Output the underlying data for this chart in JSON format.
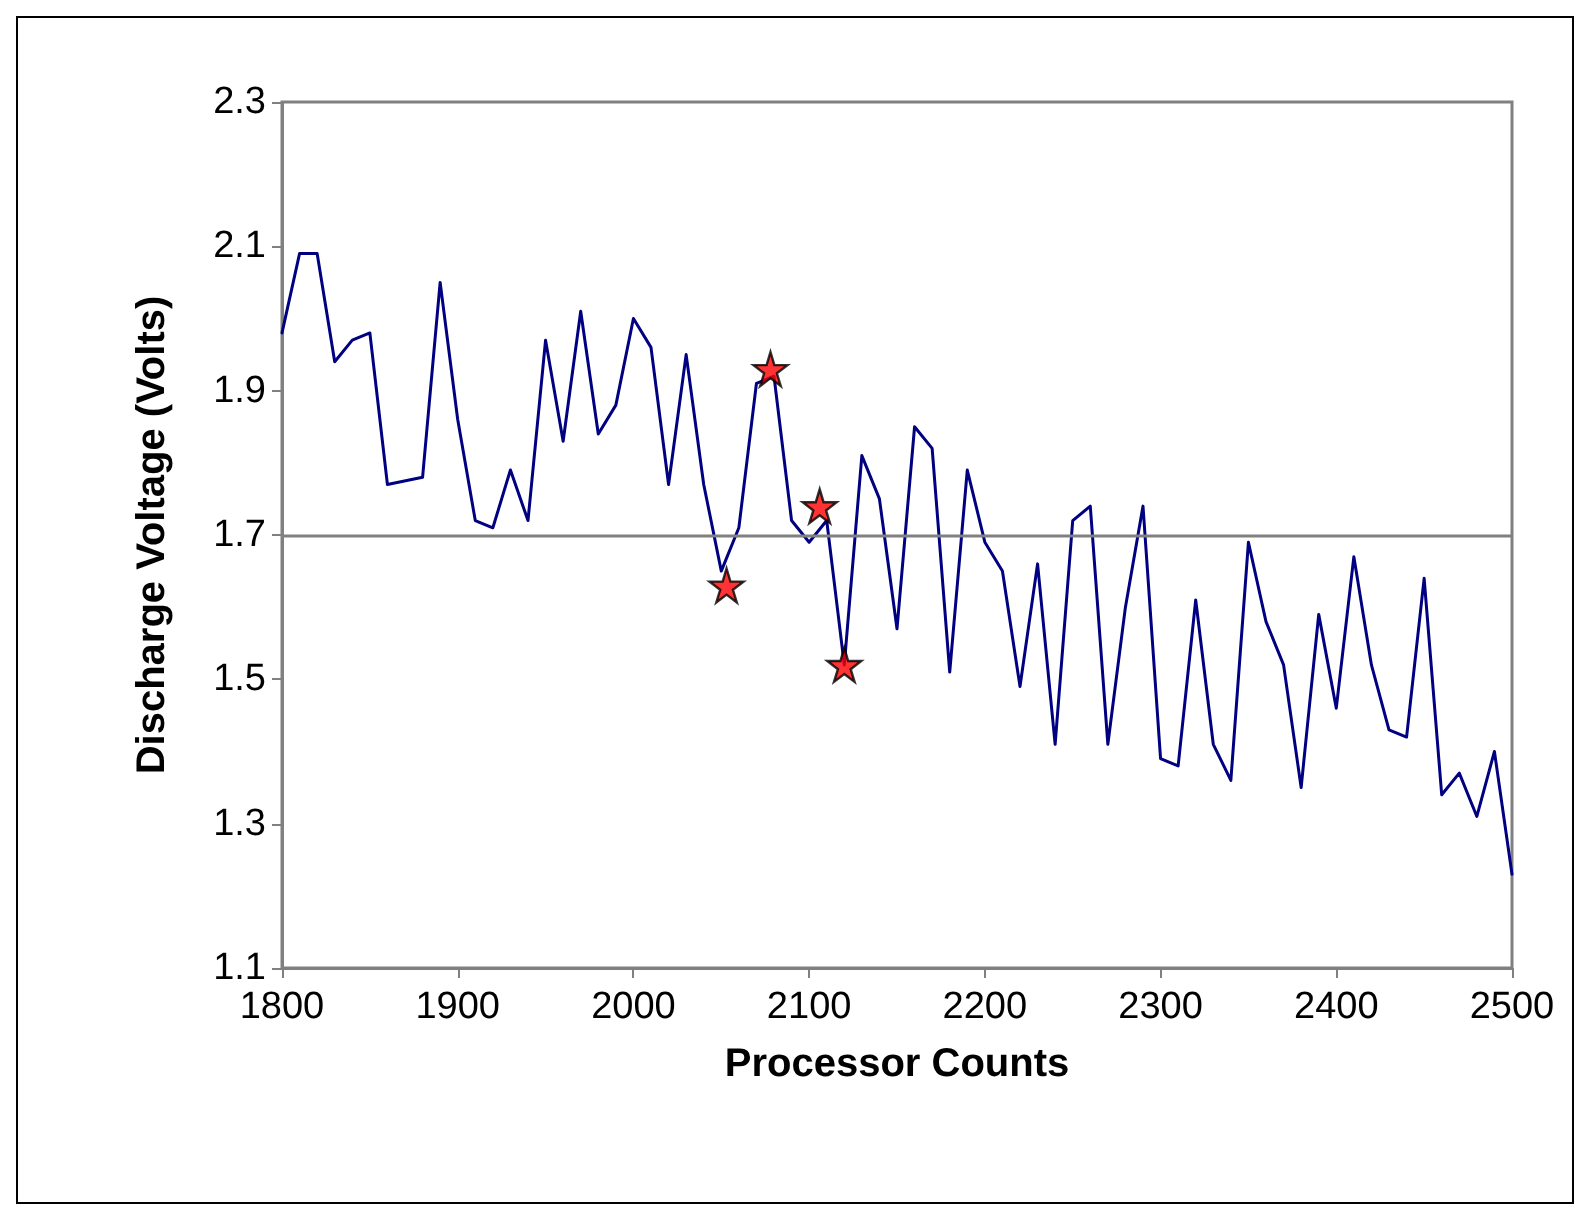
{
  "chart_data": {
    "type": "line",
    "xlabel": "Processor Counts",
    "ylabel": "Discharge Voltage (Volts)",
    "xlim": [
      1800,
      2500
    ],
    "xticks": [
      1800,
      1900,
      2000,
      2100,
      2200,
      2300,
      2400,
      2500
    ],
    "ylim": [
      1.1,
      2.3
    ],
    "yticks": [
      1.1,
      1.3,
      1.5,
      1.7,
      1.9,
      2.1,
      2.3
    ],
    "grid": false,
    "marker": "none",
    "line_style": "solid",
    "ref_lines": [
      {
        "axis": "y",
        "value": 1.7,
        "color": "#808080"
      }
    ],
    "series": [
      {
        "color": "#000080",
        "x": [
          1800,
          1810,
          1820,
          1830,
          1840,
          1850,
          1860,
          1880,
          1890,
          1900,
          1910,
          1920,
          1930,
          1940,
          1950,
          1960,
          1970,
          1980,
          1990,
          2000,
          2010,
          2020,
          2030,
          2040,
          2050,
          2060,
          2070,
          2080,
          2090,
          2100,
          2110,
          2120,
          2130,
          2140,
          2150,
          2160,
          2170,
          2180,
          2190,
          2200,
          2210,
          2220,
          2230,
          2240,
          2250,
          2260,
          2270,
          2280,
          2290,
          2300,
          2310,
          2320,
          2330,
          2340,
          2350,
          2360,
          2370,
          2380,
          2390,
          2400,
          2410,
          2420,
          2430,
          2440,
          2450,
          2460,
          2470,
          2480,
          2490,
          2500
        ],
        "values": [
          1.98,
          2.09,
          2.09,
          1.94,
          1.97,
          1.98,
          1.77,
          1.78,
          2.05,
          1.86,
          1.72,
          1.71,
          1.79,
          1.72,
          1.97,
          1.83,
          2.01,
          1.84,
          1.88,
          2.0,
          1.96,
          1.77,
          1.95,
          1.77,
          1.65,
          1.71,
          1.91,
          1.92,
          1.72,
          1.69,
          1.72,
          1.52,
          1.81,
          1.75,
          1.57,
          1.85,
          1.82,
          1.51,
          1.79,
          1.69,
          1.65,
          1.49,
          1.66,
          1.41,
          1.72,
          1.74,
          1.41,
          1.6,
          1.74,
          1.39,
          1.38,
          1.61,
          1.41,
          1.36,
          1.69,
          1.58,
          1.52,
          1.35,
          1.59,
          1.46,
          1.67,
          1.52,
          1.43,
          1.42,
          1.64,
          1.34,
          1.37,
          1.31,
          1.4,
          1.23
        ]
      },
      {
        "type": "scatter",
        "marker": "star",
        "color": "#ff0000",
        "x": [
          2053,
          2078,
          2106,
          2120
        ],
        "values": [
          1.63,
          1.93,
          1.74,
          1.52
        ]
      }
    ]
  }
}
